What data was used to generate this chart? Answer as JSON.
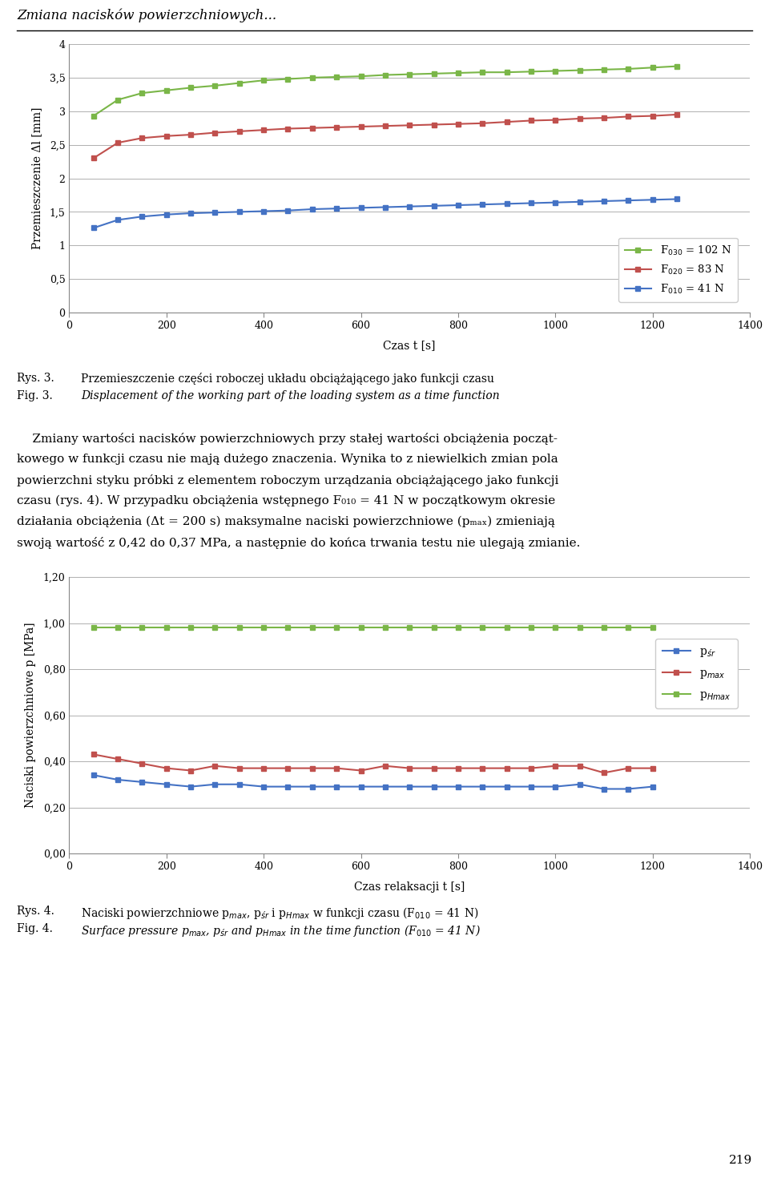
{
  "page_title": "Zmiana nacisków powierzchniowych...",
  "chart1": {
    "ylabel": "Przemieszczenie Δl [mm]",
    "xlabel": "Czas t [s]",
    "xlim": [
      0,
      1400
    ],
    "ylim": [
      0,
      4
    ],
    "yticks": [
      0,
      0.5,
      1,
      1.5,
      2,
      2.5,
      3,
      3.5,
      4
    ],
    "ytick_labels": [
      "0",
      "0,5",
      "1",
      "1,5",
      "2",
      "2,5",
      "3",
      "3,5",
      "4"
    ],
    "xticks": [
      0,
      200,
      400,
      600,
      800,
      1000,
      1200,
      1400
    ],
    "series": [
      {
        "label": "F$_{030}$ = 102 N",
        "color": "#7ab648",
        "x": [
          50,
          100,
          150,
          200,
          250,
          300,
          350,
          400,
          450,
          500,
          550,
          600,
          650,
          700,
          750,
          800,
          850,
          900,
          950,
          1000,
          1050,
          1100,
          1150,
          1200,
          1250
        ],
        "y": [
          2.93,
          3.17,
          3.27,
          3.31,
          3.35,
          3.38,
          3.42,
          3.46,
          3.48,
          3.5,
          3.51,
          3.52,
          3.54,
          3.55,
          3.56,
          3.57,
          3.58,
          3.58,
          3.59,
          3.6,
          3.61,
          3.62,
          3.63,
          3.65,
          3.67
        ]
      },
      {
        "label": "F$_{020}$ = 83 N",
        "color": "#c0504d",
        "x": [
          50,
          100,
          150,
          200,
          250,
          300,
          350,
          400,
          450,
          500,
          550,
          600,
          650,
          700,
          750,
          800,
          850,
          900,
          950,
          1000,
          1050,
          1100,
          1150,
          1200,
          1250
        ],
        "y": [
          2.3,
          2.53,
          2.6,
          2.63,
          2.65,
          2.68,
          2.7,
          2.72,
          2.74,
          2.75,
          2.76,
          2.77,
          2.78,
          2.79,
          2.8,
          2.81,
          2.82,
          2.84,
          2.86,
          2.87,
          2.89,
          2.9,
          2.92,
          2.93,
          2.95
        ]
      },
      {
        "label": "F$_{010}$ = 41 N",
        "color": "#4472c4",
        "x": [
          50,
          100,
          150,
          200,
          250,
          300,
          350,
          400,
          450,
          500,
          550,
          600,
          650,
          700,
          750,
          800,
          850,
          900,
          950,
          1000,
          1050,
          1100,
          1150,
          1200,
          1250
        ],
        "y": [
          1.26,
          1.38,
          1.43,
          1.46,
          1.48,
          1.49,
          1.5,
          1.51,
          1.52,
          1.54,
          1.55,
          1.56,
          1.57,
          1.58,
          1.59,
          1.6,
          1.61,
          1.62,
          1.63,
          1.64,
          1.65,
          1.66,
          1.67,
          1.68,
          1.69
        ]
      }
    ]
  },
  "text1_rys": "Rys. 3.",
  "text1_fig": "Fig. 3.",
  "text1_pol": "Przemieszczenie części roboczej układu obciążającego jako funkcji czasu",
  "text1_eng": "Displacement of the working part of the loading system as a time function",
  "text2_lines": [
    "    Zmiany wartości nacisków powierzchniowych przy stałej wartości obciążenia począt-",
    "kowego w funkcji czasu nie mają dużego znaczenia. Wynika to z niewielkich zmian pola",
    "powierzchni styku próbki z elementem roboczym urządzania obciążającego jako funkcji",
    "czasu (rys. 4). W przypadku obciążenia wstępnego F₀₁₀ = 41 N w początkowym okresie",
    "działania obciążenia (Δt = 200 s) maksymalne naciski powierzchniowe (pₘₐₓ) zmieniają",
    "swoją wartość z 0,42 do 0,37 MPa, a następnie do końca trwania testu nie ulegają zmianie."
  ],
  "chart2": {
    "ylabel": "Naciski powierzchniowe p [MPa]",
    "xlabel": "Czas relaksacji t [s]",
    "xlim": [
      0,
      1400
    ],
    "ylim": [
      0,
      1.2
    ],
    "yticks": [
      0.0,
      0.2,
      0.4,
      0.6,
      0.8,
      1.0,
      1.2
    ],
    "ytick_labels": [
      "0,00",
      "0,20",
      "0,40",
      "0,60",
      "0,80",
      "1,00",
      "1,20"
    ],
    "xticks": [
      0,
      200,
      400,
      600,
      800,
      1000,
      1200,
      1400
    ],
    "series": [
      {
        "label": "p$_{śr}$",
        "color": "#4472c4",
        "x": [
          50,
          100,
          150,
          200,
          250,
          300,
          350,
          400,
          450,
          500,
          550,
          600,
          650,
          700,
          750,
          800,
          850,
          900,
          950,
          1000,
          1050,
          1100,
          1150,
          1200
        ],
        "y": [
          0.34,
          0.32,
          0.31,
          0.3,
          0.29,
          0.3,
          0.3,
          0.29,
          0.29,
          0.29,
          0.29,
          0.29,
          0.29,
          0.29,
          0.29,
          0.29,
          0.29,
          0.29,
          0.29,
          0.29,
          0.3,
          0.28,
          0.28,
          0.29
        ]
      },
      {
        "label": "p$_{max}$",
        "color": "#c0504d",
        "x": [
          50,
          100,
          150,
          200,
          250,
          300,
          350,
          400,
          450,
          500,
          550,
          600,
          650,
          700,
          750,
          800,
          850,
          900,
          950,
          1000,
          1050,
          1100,
          1150,
          1200
        ],
        "y": [
          0.43,
          0.41,
          0.39,
          0.37,
          0.36,
          0.38,
          0.37,
          0.37,
          0.37,
          0.37,
          0.37,
          0.36,
          0.38,
          0.37,
          0.37,
          0.37,
          0.37,
          0.37,
          0.37,
          0.38,
          0.38,
          0.35,
          0.37,
          0.37
        ]
      },
      {
        "label": "p$_{Hmax}$",
        "color": "#7ab648",
        "x": [
          50,
          100,
          150,
          200,
          250,
          300,
          350,
          400,
          450,
          500,
          550,
          600,
          650,
          700,
          750,
          800,
          850,
          900,
          950,
          1000,
          1050,
          1100,
          1150,
          1200
        ],
        "y": [
          0.98,
          0.98,
          0.98,
          0.98,
          0.98,
          0.98,
          0.98,
          0.98,
          0.98,
          0.98,
          0.98,
          0.98,
          0.98,
          0.98,
          0.98,
          0.98,
          0.98,
          0.98,
          0.98,
          0.98,
          0.98,
          0.98,
          0.98,
          0.98
        ]
      }
    ]
  },
  "text3_rys": "Rys. 4.",
  "text3_fig": "Fig. 4.",
  "text3_pol": "Naciski powierzchniowe p$_{max}$, p$_{śr}$ i p$_{Hmax}$ w funkcji czasu (F$_{010}$ = 41 N)",
  "text3_eng": "Surface pressure p$_{max}$, p$_{śr}$ and p$_{Hmax}$ in the time function (F$_{010}$ = 41 N)",
  "page_number": "219",
  "bg_color": "#ffffff",
  "grid_color": "#b0b0b0",
  "marker": "s",
  "markersize": 4,
  "linewidth": 1.5
}
